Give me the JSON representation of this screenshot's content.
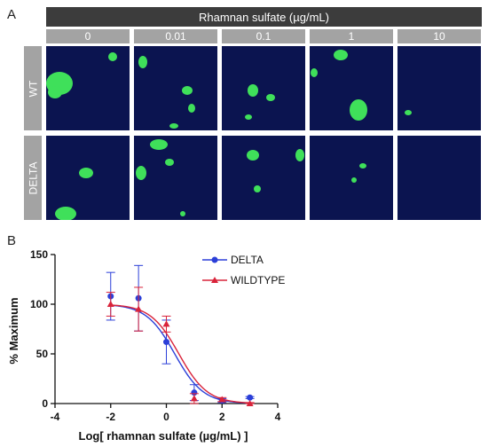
{
  "panel_a": {
    "letter": "A",
    "header": "Rhamnan sulfate (µg/mL)",
    "columns": [
      "0",
      "0.01",
      "0.1",
      "1",
      "10"
    ],
    "rows": [
      "WT",
      "DELTA"
    ]
  },
  "panel_b": {
    "letter": "B"
  },
  "colors": {
    "delta": "#2b3fd8",
    "wildtype": "#d9233a",
    "micrograph_bg": "#0b1450",
    "cell": "#3fe05a"
  },
  "chart_data": {
    "type": "scatter",
    "xlabel": "Log[ rhamnan sulfate (µg/mL) ]",
    "ylabel": "% Maximum",
    "xlim": [
      -4,
      4
    ],
    "ylim": [
      0,
      150
    ],
    "xticks": [
      -4,
      -2,
      0,
      2,
      4
    ],
    "yticks": [
      0,
      50,
      100,
      150
    ],
    "legend_position": "top-right",
    "series": [
      {
        "name": "DELTA",
        "marker": "circle",
        "color": "#2b3fd8",
        "x": [
          -2,
          -1,
          0,
          1,
          2,
          3
        ],
        "y": [
          108,
          106,
          62,
          11,
          3,
          6
        ],
        "err": [
          24,
          33,
          22,
          8,
          2,
          1
        ],
        "fit": {
          "top": 100,
          "bottom": 0,
          "log_ec50": 0.3,
          "hill": -0.85
        }
      },
      {
        "name": "WILDTYPE",
        "marker": "triangle",
        "color": "#d9233a",
        "x": [
          -2,
          -1,
          0,
          1,
          2,
          3
        ],
        "y": [
          100,
          95,
          80,
          5,
          4,
          0
        ],
        "err": [
          12,
          22,
          8,
          5,
          2,
          1
        ],
        "fit": {
          "top": 100,
          "bottom": 0,
          "log_ec50": 0.45,
          "hill": -0.85
        }
      }
    ]
  }
}
